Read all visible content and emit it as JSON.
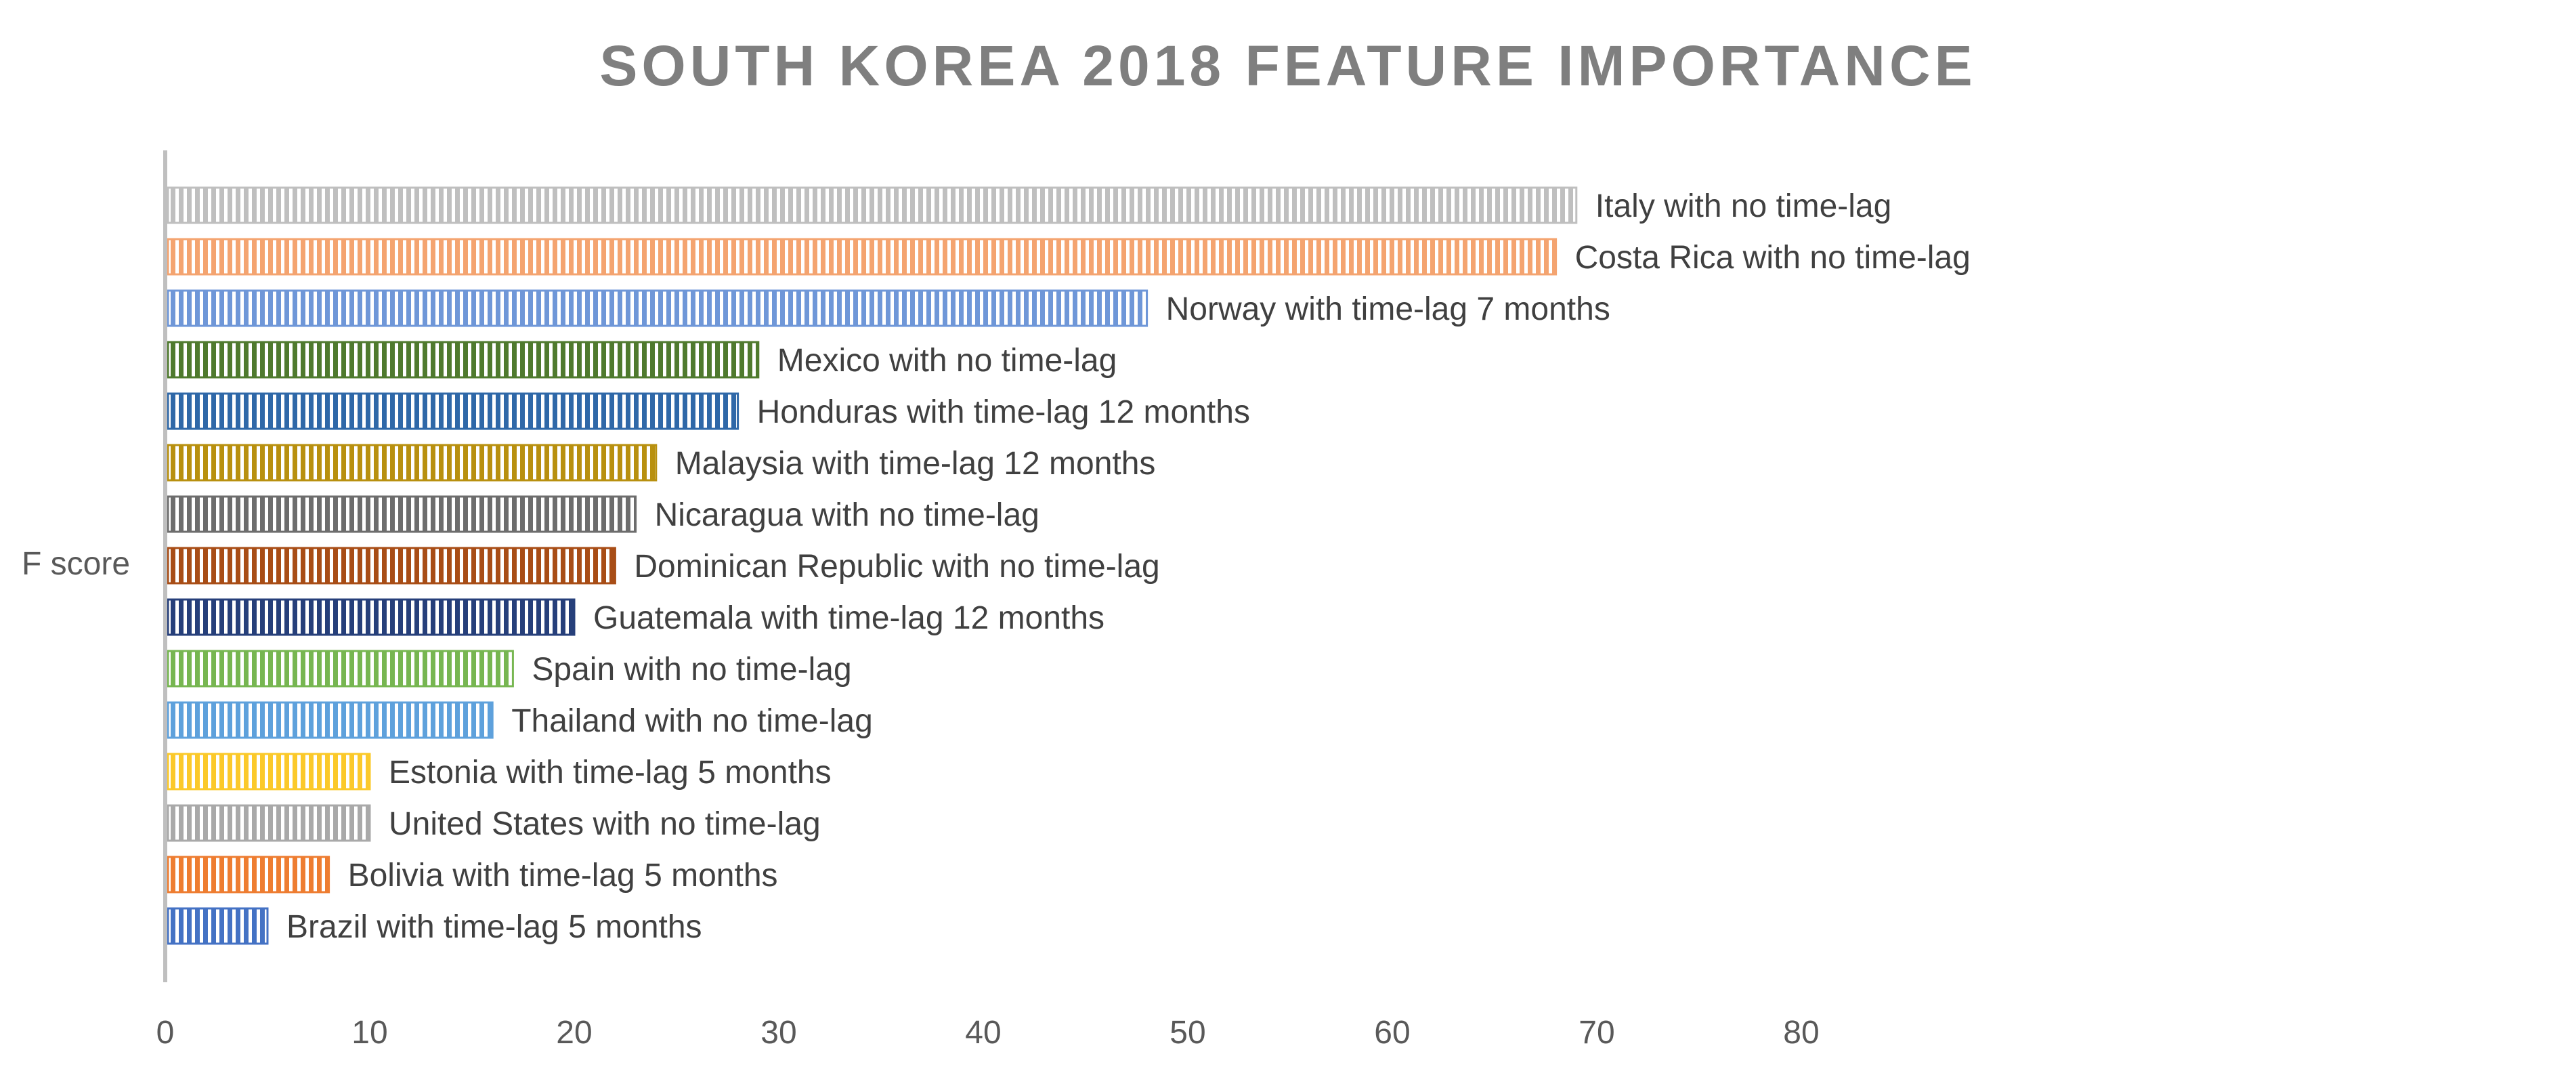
{
  "chart_data": {
    "type": "bar",
    "orientation": "horizontal",
    "title": "SOUTH KOREA 2018 FEATURE IMPORTANCE",
    "ylabel": "F score",
    "xlabel": "",
    "xlim": [
      0,
      80
    ],
    "xticks": [
      "0",
      "10",
      "20",
      "30",
      "40",
      "50",
      "60",
      "70",
      "80"
    ],
    "grid": false,
    "legend": "none",
    "bars": [
      {
        "label": "Italy with no time-lag",
        "value": 69,
        "color": "#bfbfbf"
      },
      {
        "label": "Costa Rica with no time-lag",
        "value": 68,
        "color": "#f4a470"
      },
      {
        "label": "Norway with time-lag 7 months",
        "value": 48,
        "color": "#6f97d8"
      },
      {
        "label": "Mexico with no time-lag",
        "value": 29,
        "color": "#4f7a2e"
      },
      {
        "label": "Honduras with time-lag 12 months",
        "value": 28,
        "color": "#2f68a8"
      },
      {
        "label": "Malaysia with time-lag 12 months",
        "value": 24,
        "color": "#b8900f"
      },
      {
        "label": "Nicaragua with no time-lag",
        "value": 23,
        "color": "#6d6d6d"
      },
      {
        "label": "Dominican Republic with no time-lag",
        "value": 22,
        "color": "#a84d16"
      },
      {
        "label": "Guatemala with time-lag 12 months",
        "value": 20,
        "color": "#263f7a"
      },
      {
        "label": "Spain with no time-lag",
        "value": 17,
        "color": "#77b651"
      },
      {
        "label": "Thailand with no time-lag",
        "value": 16,
        "color": "#5ea1dc"
      },
      {
        "label": "Estonia with time-lag 5 months",
        "value": 10,
        "color": "#fbc92a"
      },
      {
        "label": "United States with no time-lag",
        "value": 10,
        "color": "#a9a9a9"
      },
      {
        "label": "Bolivia with time-lag 5 months",
        "value": 8,
        "color": "#ee7d31"
      },
      {
        "label": "Brazil with time-lag 5 months",
        "value": 5,
        "color": "#4472c4"
      }
    ]
  }
}
